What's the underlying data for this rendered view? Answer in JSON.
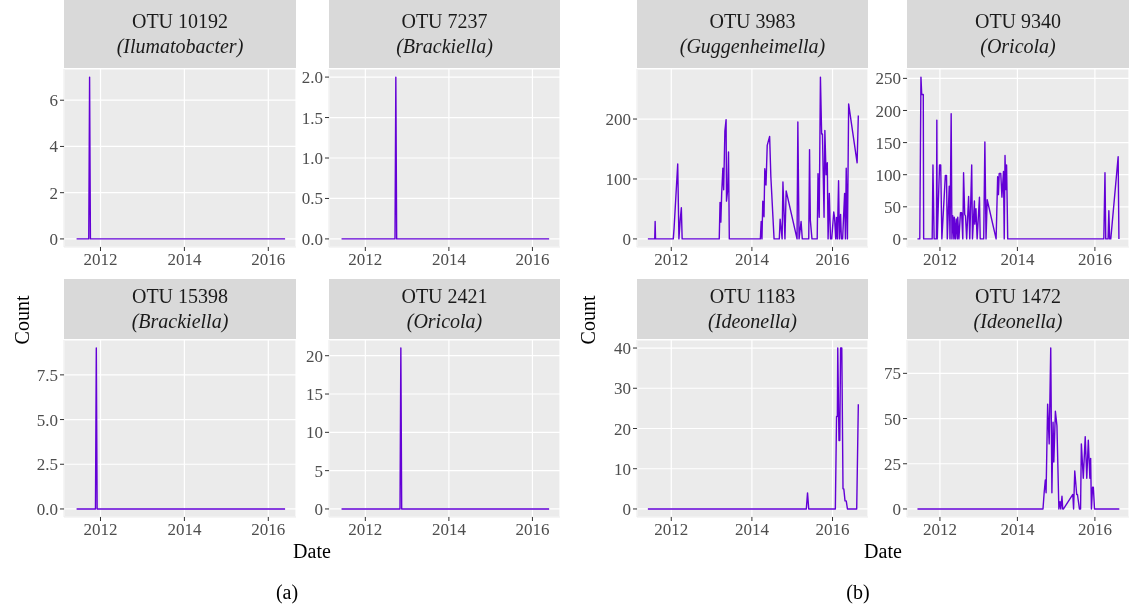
{
  "chart_data": [
    {
      "type": "line",
      "title": "OTU 10192",
      "subtitle": "(Ilumatobacter)",
      "ylabel": "Count",
      "color": "#6300d6",
      "grid": true,
      "x": [
        2011.43,
        2011.72,
        2011.74,
        2011.76,
        2016.4
      ],
      "values": [
        0,
        0,
        7,
        0,
        0
      ],
      "xlim": [
        2011.13,
        2016.66
      ],
      "xticks": [
        2012,
        2014,
        2016
      ],
      "ylim": [
        -0.35,
        7.35
      ],
      "yticks": [
        0,
        2,
        4,
        6
      ]
    },
    {
      "type": "line",
      "title": "OTU 7237",
      "subtitle": "(Brackiella)",
      "color": "#6300d6",
      "grid": true,
      "x": [
        2011.43,
        2012.71,
        2012.73,
        2012.75,
        2016.4
      ],
      "values": [
        0,
        0,
        2,
        0,
        0
      ],
      "xlim": [
        2011.13,
        2016.66
      ],
      "xticks": [
        2012,
        2014,
        2016
      ],
      "ylim": [
        -0.1,
        2.1
      ],
      "yticks": [
        {
          "value": 0,
          "label": "0.0"
        },
        0.5,
        {
          "value": 1,
          "label": "1.0"
        },
        1.5,
        {
          "value": 2,
          "label": "2.0"
        }
      ]
    },
    {
      "type": "line",
      "title": "OTU 15398",
      "subtitle": "(Brackiella)",
      "xlabel": "Date",
      "annotations": [
        "(a)"
      ],
      "color": "#6300d6",
      "grid": true,
      "x": [
        2011.43,
        2011.88,
        2011.9,
        2011.92,
        2016.4
      ],
      "values": [
        0,
        0,
        9,
        0,
        0
      ],
      "xlim": [
        2011.13,
        2016.66
      ],
      "xticks": [
        2012,
        2014,
        2016
      ],
      "ylim": [
        -0.45,
        9.45
      ],
      "yticks": [
        {
          "value": 0,
          "label": "0.0"
        },
        2.5,
        {
          "value": 5,
          "label": "5.0"
        },
        7.5
      ]
    },
    {
      "type": "line",
      "title": "OTU 2421",
      "subtitle": "(Oricola)",
      "color": "#6300d6",
      "grid": true,
      "x": [
        2011.43,
        2012.83,
        2012.85,
        2012.87,
        2016.4
      ],
      "values": [
        0,
        0,
        21,
        0,
        0
      ],
      "xlim": [
        2011.13,
        2016.66
      ],
      "xticks": [
        2012,
        2014,
        2016
      ],
      "ylim": [
        -1.05,
        22.05
      ],
      "yticks": [
        0,
        5,
        10,
        15,
        20
      ]
    },
    {
      "type": "line",
      "title": "OTU 3983",
      "subtitle": "(Guggenheimella)",
      "ylabel": "Count",
      "color": "#6300d6",
      "grid": true,
      "x": [
        2011.42,
        2011.59,
        2011.6,
        2011.61,
        2012.05,
        2012.07,
        2012.16,
        2012.19,
        2012.22,
        2012.25,
        2012.27,
        2013.19,
        2013.21,
        2013.23,
        2013.25,
        2013.28,
        2013.3,
        2013.33,
        2013.36,
        2013.37,
        2013.4,
        2013.42,
        2013.44,
        2013.46,
        2014.21,
        2014.23,
        2014.25,
        2014.27,
        2014.3,
        2014.32,
        2014.35,
        2014.38,
        2014.44,
        2014.47,
        2014.55,
        2014.68,
        2014.7,
        2014.75,
        2014.77,
        2014.82,
        2014.85,
        2015.12,
        2015.14,
        2015.17,
        2015.22,
        2015.25,
        2015.41,
        2015.43,
        2015.45,
        2015.49,
        2015.62,
        2015.64,
        2015.67,
        2015.7,
        2015.73,
        2015.75,
        2015.79,
        2015.81,
        2015.84,
        2015.87,
        2015.89,
        2015.92,
        2015.95,
        2015.98,
        2016.03,
        2016.05,
        2016.08,
        2016.1,
        2016.12,
        2016.15,
        2016.17,
        2016.2,
        2016.22,
        2016.25,
        2016.3,
        2016.32,
        2016.34,
        2016.37,
        2016.4,
        2016.61,
        2016.64
      ],
      "values": [
        0,
        0,
        29,
        0,
        0,
        18,
        125,
        0,
        30,
        52,
        0,
        0,
        61,
        28,
        75,
        118,
        82,
        180,
        199,
        63,
        82,
        145,
        0,
        0,
        0,
        29,
        0,
        63,
        37,
        117,
        90,
        156,
        171,
        104,
        0,
        0,
        33,
        0,
        95,
        0,
        80,
        0,
        195,
        0,
        29,
        0,
        0,
        149,
        31,
        0,
        0,
        109,
        36,
        270,
        175,
        175,
        36,
        181,
        107,
        127,
        0,
        76,
        0,
        0,
        45,
        36,
        0,
        36,
        0,
        97,
        0,
        41,
        0,
        0,
        76,
        0,
        118,
        0,
        225,
        127,
        206
      ],
      "xlim": [
        2011.15,
        2016.88
      ],
      "xticks": [
        2012,
        2014,
        2016
      ],
      "ylim": [
        -13.5,
        283.5
      ],
      "yticks": [
        0,
        100,
        200
      ]
    },
    {
      "type": "line",
      "title": "OTU 9340",
      "subtitle": "(Oricola)",
      "color": "#6300d6",
      "grid": true,
      "x": [
        2011.42,
        2011.48,
        2011.51,
        2011.53,
        2011.57,
        2011.58,
        2011.8,
        2011.82,
        2011.85,
        2011.91,
        2011.92,
        2011.93,
        2011.99,
        2012.02,
        2012.05,
        2012.14,
        2012.17,
        2012.19,
        2012.24,
        2012.26,
        2012.29,
        2012.31,
        2012.33,
        2012.36,
        2012.37,
        2012.4,
        2012.42,
        2012.45,
        2012.46,
        2012.49,
        2012.53,
        2012.56,
        2012.59,
        2012.61,
        2012.64,
        2012.66,
        2012.69,
        2012.74,
        2012.77,
        2012.82,
        2012.84,
        2012.89,
        2012.9,
        2012.93,
        2012.96,
        2013.02,
        2013.04,
        2013.13,
        2013.16,
        2013.19,
        2013.22,
        2013.45,
        2013.49,
        2013.51,
        2013.53,
        2013.57,
        2013.6,
        2013.64,
        2013.66,
        2013.68,
        2013.7,
        2013.72,
        2013.75,
        2013.78,
        2016.23,
        2016.26,
        2016.28,
        2016.34,
        2016.36,
        2016.38,
        2016.41,
        2016.6,
        2016.62
      ],
      "values": [
        0,
        0,
        252,
        225,
        225,
        0,
        0,
        115,
        0,
        0,
        185,
        0,
        115,
        115,
        0,
        99,
        99,
        0,
        82,
        0,
        195,
        0,
        36,
        0,
        34,
        0,
        31,
        0,
        34,
        0,
        41,
        41,
        0,
        103,
        38,
        36,
        0,
        66,
        0,
        115,
        0,
        59,
        23,
        47,
        0,
        65,
        0,
        0,
        151,
        0,
        61,
        0,
        97,
        69,
        102,
        102,
        65,
        105,
        0,
        130,
        77,
        115,
        0,
        0,
        0,
        103,
        0,
        0,
        44,
        0,
        0,
        128,
        0
      ],
      "xlim": [
        2011.15,
        2016.88
      ],
      "xticks": [
        2012,
        2014,
        2016
      ],
      "ylim": [
        -12.6,
        264.6
      ],
      "yticks": [
        0,
        50,
        100,
        150,
        200,
        250
      ]
    },
    {
      "type": "line",
      "title": "OTU 1183",
      "subtitle": "(Ideonella)",
      "xlabel": "Date",
      "annotations": [
        "(b)"
      ],
      "color": "#6300d6",
      "grid": true,
      "x": [
        2011.42,
        2015.35,
        2015.38,
        2015.41,
        2016.07,
        2016.1,
        2016.12,
        2016.13,
        2016.16,
        2016.18,
        2016.2,
        2016.23,
        2016.26,
        2016.28,
        2016.31,
        2016.34,
        2016.37,
        2016.6,
        2016.64
      ],
      "values": [
        0,
        0,
        4,
        0,
        0,
        23,
        23,
        40,
        17,
        17,
        40,
        40,
        5,
        5,
        2,
        2,
        0,
        0,
        26
      ],
      "xlim": [
        2011.15,
        2016.88
      ],
      "xticks": [
        2012,
        2014,
        2016
      ],
      "ylim": [
        -2,
        42
      ],
      "yticks": [
        0,
        10,
        20,
        30,
        40
      ]
    },
    {
      "type": "line",
      "title": "OTU 1472",
      "subtitle": "(Ideonella)",
      "color": "#6300d6",
      "grid": true,
      "x": [
        2011.42,
        2014.66,
        2014.69,
        2014.72,
        2014.74,
        2014.78,
        2014.82,
        2014.86,
        2014.89,
        2014.92,
        2014.94,
        2014.98,
        2015.02,
        2015.07,
        2015.1,
        2015.12,
        2015.15,
        2015.17,
        2015.19,
        2015.43,
        2015.45,
        2015.48,
        2015.53,
        2015.55,
        2015.6,
        2015.63,
        2015.65,
        2015.7,
        2015.75,
        2015.79,
        2015.83,
        2015.87,
        2015.89,
        2015.91,
        2015.94,
        2015.96,
        2015.99,
        2016.63
      ],
      "values": [
        0,
        0,
        9,
        16,
        9,
        58,
        36,
        89,
        9,
        48,
        26,
        54,
        46,
        0,
        4,
        0,
        7,
        0,
        0,
        8,
        0,
        21,
        8,
        8,
        0,
        0,
        36,
        17,
        40,
        17,
        38,
        17,
        28,
        0,
        12,
        12,
        0,
        0
      ],
      "xlim": [
        2011.15,
        2016.88
      ],
      "xticks": [
        2012,
        2014,
        2016
      ],
      "ylim": [
        -4.45,
        93.45
      ],
      "yticks": [
        0,
        25,
        50,
        75
      ]
    }
  ]
}
